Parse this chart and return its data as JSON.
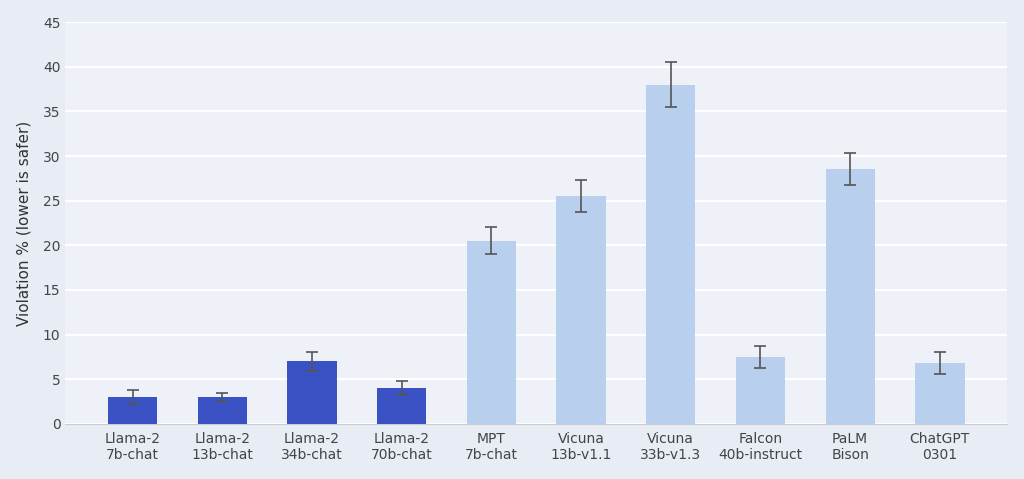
{
  "categories": [
    "Llama-2\n7b-chat",
    "Llama-2\n13b-chat",
    "Llama-2\n34b-chat",
    "Llama-2\n70b-chat",
    "MPT\n7b-chat",
    "Vicuna\n13b-v1.1",
    "Vicuna\n33b-v1.3",
    "Falcon\n40b-instruct",
    "PaLM\nBison",
    "ChatGPT\n0301"
  ],
  "values": [
    3.0,
    3.0,
    7.0,
    4.0,
    20.5,
    25.5,
    38.0,
    7.5,
    28.5,
    6.8
  ],
  "errors": [
    0.8,
    0.5,
    1.1,
    0.8,
    1.5,
    1.8,
    2.5,
    1.2,
    1.8,
    1.2
  ],
  "bar_colors_dark": "#3a52c4",
  "bar_colors_light": "#b8d0ed",
  "dark_count": 4,
  "ylabel": "Violation % (lower is safer)",
  "ylim": [
    0,
    45
  ],
  "yticks": [
    0,
    5,
    10,
    15,
    20,
    25,
    30,
    35,
    40,
    45
  ],
  "figure_bg": "#e8ecf5",
  "axes_bg": "#eef1f8",
  "grid_color": "#ffffff",
  "bottom_spine_color": "#cccccc",
  "bar_width": 0.55,
  "label_fontsize": 11,
  "tick_fontsize": 10,
  "ecolor": "#555555",
  "elinewidth": 1.2,
  "capsize": 4,
  "capthick": 1.2
}
